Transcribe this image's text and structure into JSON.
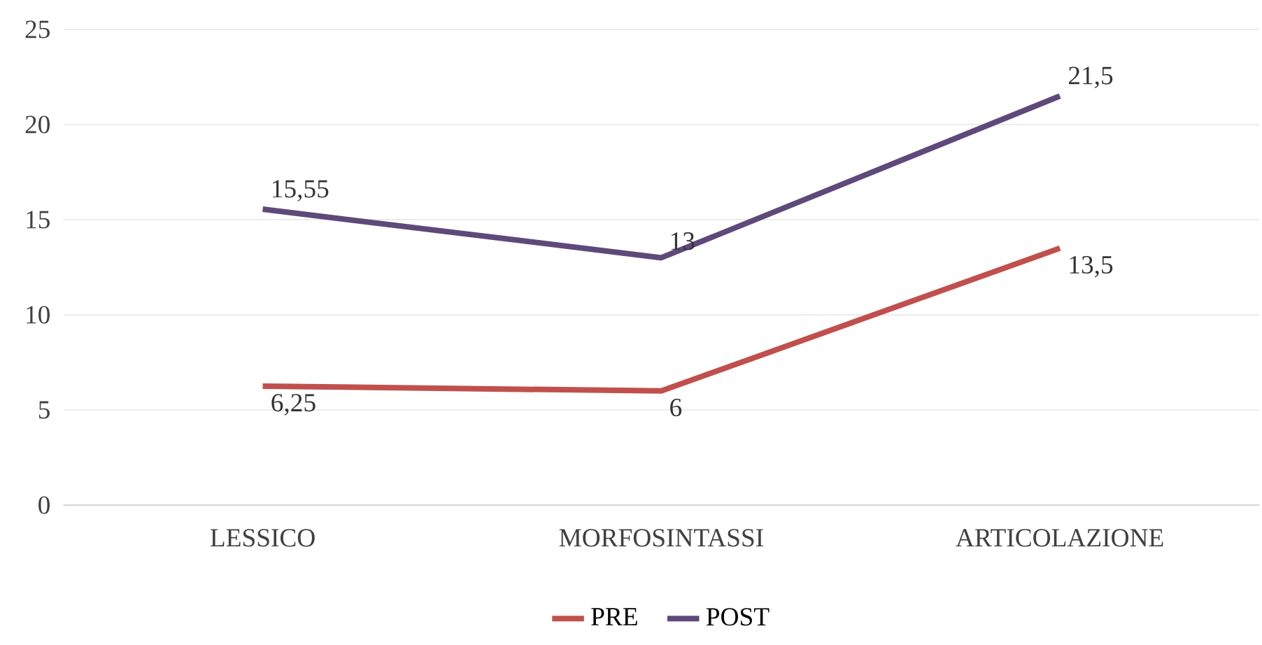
{
  "chart_data": {
    "type": "line",
    "categories": [
      "LESSICO",
      "MORFOSINTASSI",
      "ARTICOLAZIONE"
    ],
    "series": [
      {
        "name": "PRE",
        "color": "#c0504d",
        "values": [
          6.25,
          6,
          13.5
        ],
        "value_labels": [
          "6,25",
          "6",
          "13,5"
        ]
      },
      {
        "name": "POST",
        "color": "#5f497a",
        "values": [
          15.55,
          13,
          21.5
        ],
        "value_labels": [
          "15,55",
          "13",
          "21,5"
        ]
      }
    ],
    "ylim": [
      0,
      25
    ],
    "yticks": [
      0,
      5,
      10,
      15,
      20,
      25
    ],
    "grid": "y",
    "legend": "bottom",
    "marker": "none",
    "line_style": "solid"
  }
}
